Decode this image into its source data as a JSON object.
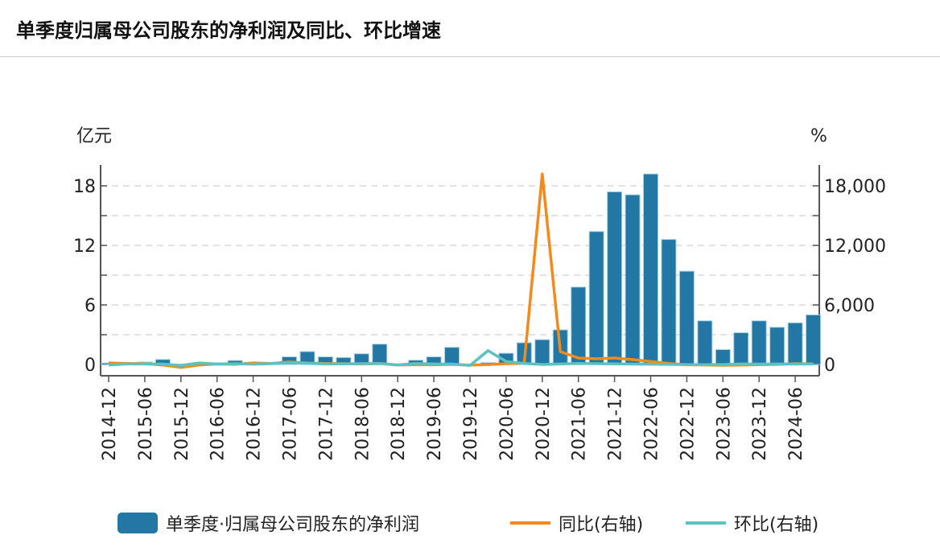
{
  "title": "单季度归属母公司股东的净利润及同比、环比增速",
  "chart_data": {
    "type": "bar+line",
    "title": "单季度归属母公司股东的净利润及同比、环比增速",
    "ylabel_left": "亿元",
    "ylabel_right": "%",
    "ylim_left": [
      -1,
      20.4
    ],
    "ylim_right": [
      -1000,
      20400
    ],
    "left_ticks": [
      "0",
      "6",
      "12",
      "18"
    ],
    "right_ticks": [
      "0",
      "6,000",
      "12,000",
      "18,000"
    ],
    "left_tick_values": [
      0,
      6,
      12,
      18
    ],
    "right_tick_values": [
      0,
      6000,
      12000,
      18000
    ],
    "x": [
      "2014-12",
      "2015-03",
      "2015-06",
      "2015-09",
      "2015-12",
      "2016-03",
      "2016-06",
      "2016-09",
      "2016-12",
      "2017-03",
      "2017-06",
      "2017-09",
      "2017-12",
      "2018-03",
      "2018-06",
      "2018-09",
      "2018-12",
      "2019-03",
      "2019-06",
      "2019-09",
      "2019-12",
      "2020-03",
      "2020-06",
      "2020-09",
      "2020-12",
      "2021-03",
      "2021-06",
      "2021-09",
      "2021-12",
      "2022-03",
      "2022-06",
      "2022-09",
      "2022-12",
      "2023-03",
      "2023-06",
      "2023-09",
      "2023-12",
      "2024-03",
      "2024-06",
      "2024-09"
    ],
    "x_tick_labels": [
      "2014-12",
      "2015-06",
      "2015-12",
      "2016-06",
      "2016-12",
      "2017-06",
      "2017-12",
      "2018-06",
      "2018-12",
      "2019-06",
      "2019-12",
      "2020-06",
      "2020-12",
      "2021-06",
      "2021-12",
      "2022-06",
      "2022-12",
      "2023-06",
      "2023-12",
      "2024-06"
    ],
    "series": [
      {
        "name": "单季度·归属母公司股东的净利润",
        "type": "bar",
        "axis": "left",
        "color": "#2277a4",
        "values": [
          0.15,
          0.05,
          0.25,
          0.5,
          0.02,
          0.05,
          0.1,
          0.4,
          0.1,
          0.2,
          0.77,
          1.3,
          0.77,
          0.7,
          1.08,
          2.05,
          0.05,
          0.43,
          0.77,
          1.73,
          0.02,
          0.19,
          1.13,
          2.19,
          2.5,
          3.49,
          7.8,
          13.4,
          17.4,
          17.1,
          19.2,
          12.6,
          9.4,
          4.4,
          1.5,
          3.2,
          4.4,
          3.75,
          4.2,
          5.0
        ]
      },
      {
        "name": "同比(右轴)",
        "type": "line",
        "axis": "right",
        "color": "#f28a1c",
        "values": [
          150,
          100,
          80,
          -50,
          -300,
          -50,
          50,
          20,
          150,
          100,
          250,
          150,
          100,
          80,
          50,
          90,
          -50,
          -20,
          -30,
          10,
          -60,
          -10,
          80,
          120,
          19200,
          1300,
          650,
          580,
          650,
          500,
          300,
          100,
          -30,
          -50,
          -80,
          -60,
          -20,
          10,
          80,
          60
        ]
      },
      {
        "name": "环比(右轴)",
        "type": "line",
        "axis": "right",
        "color": "#5cc2c0",
        "values": [
          -50,
          50,
          50,
          50,
          -100,
          150,
          50,
          80,
          30,
          80,
          150,
          120,
          50,
          60,
          80,
          100,
          -50,
          100,
          50,
          50,
          -100,
          1400,
          300,
          100,
          0,
          50,
          100,
          80,
          60,
          40,
          30,
          10,
          -10,
          -20,
          -10,
          50,
          40,
          50,
          40,
          50
        ]
      }
    ]
  }
}
